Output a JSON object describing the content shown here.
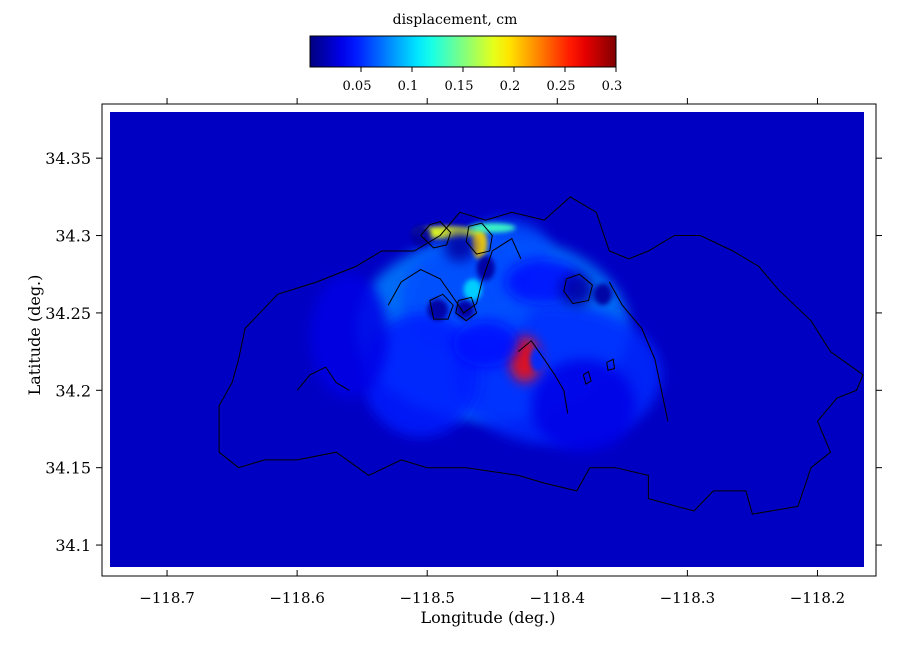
{
  "chart_data": {
    "type": "heatmap",
    "title": "",
    "xlabel": "Longitude (deg.)",
    "ylabel": "Latitude (deg.)",
    "xlim": [
      -118.75,
      -118.155
    ],
    "ylim": [
      34.08,
      34.385
    ],
    "x_ticks": [
      -118.7,
      -118.6,
      -118.5,
      -118.4,
      -118.3,
      -118.2
    ],
    "x_tick_labels": [
      "−118.7",
      "−118.6",
      "−118.5",
      "−118.4",
      "−118.3",
      "−118.2"
    ],
    "y_ticks": [
      34.1,
      34.15,
      34.2,
      34.25,
      34.3,
      34.35
    ],
    "y_tick_labels": [
      "34.1",
      "34.15",
      "34.2",
      "34.25",
      "34.3",
      "34.35"
    ],
    "colorbar": {
      "label": "displacement, cm",
      "range": [
        0,
        0.3
      ],
      "ticks": [
        0.05,
        0.1,
        0.15,
        0.2,
        0.25,
        0.3
      ],
      "tick_labels": [
        "0.05",
        "0.1",
        "0.15",
        "0.2",
        "0.25",
        "0.3"
      ],
      "colormap": "jet"
    },
    "background_value": 0.02,
    "features": [
      {
        "x": -118.45,
        "y": 34.24,
        "sx": 0.105,
        "sy": 0.06,
        "value": 0.075
      },
      {
        "x": -118.4,
        "y": 34.21,
        "sx": 0.08,
        "sy": 0.045,
        "value": 0.05
      },
      {
        "x": -118.47,
        "y": 34.26,
        "sx": 0.05,
        "sy": 0.035,
        "value": 0.06
      },
      {
        "x": -118.44,
        "y": 34.29,
        "sx": 0.035,
        "sy": 0.02,
        "value": 0.06
      },
      {
        "x": -118.505,
        "y": 34.21,
        "sx": 0.045,
        "sy": 0.04,
        "value": 0.045
      },
      {
        "x": -118.56,
        "y": 34.235,
        "sx": 0.03,
        "sy": 0.04,
        "value": 0.03
      },
      {
        "x": -118.38,
        "y": 34.19,
        "sx": 0.04,
        "sy": 0.03,
        "value": 0.03
      },
      {
        "x": -118.45,
        "y": 34.27,
        "sx": 0.01,
        "sy": 0.035,
        "value": 0.06
      },
      {
        "x": -118.465,
        "y": 34.265,
        "sx": 0.007,
        "sy": 0.007,
        "value": 0.1
      },
      {
        "x": -118.425,
        "y": 34.22,
        "sx": 0.012,
        "sy": 0.015,
        "value": 0.26
      },
      {
        "x": -118.415,
        "y": 34.22,
        "sx": 0.006,
        "sy": 0.008,
        "value": 0.05
      },
      {
        "x": -118.46,
        "y": 34.295,
        "sx": 0.006,
        "sy": 0.01,
        "value": 0.2
      },
      {
        "x": -118.485,
        "y": 34.302,
        "sx": 0.025,
        "sy": 0.004,
        "value": 0.18
      },
      {
        "x": -118.45,
        "y": 34.305,
        "sx": 0.018,
        "sy": 0.003,
        "value": 0.13
      },
      {
        "x": -118.41,
        "y": 34.27,
        "sx": 0.03,
        "sy": 0.015,
        "value": 0.04
      },
      {
        "x": -118.455,
        "y": 34.23,
        "sx": 0.025,
        "sy": 0.015,
        "value": 0.04
      },
      {
        "x": -118.505,
        "y": 34.3,
        "sx": 0.008,
        "sy": 0.007,
        "value": -0.06
      },
      {
        "x": -118.475,
        "y": 34.293,
        "sx": 0.012,
        "sy": 0.01,
        "value": -0.07
      },
      {
        "x": -118.455,
        "y": 34.279,
        "sx": 0.007,
        "sy": 0.008,
        "value": -0.07
      },
      {
        "x": -118.492,
        "y": 34.252,
        "sx": 0.008,
        "sy": 0.007,
        "value": -0.07
      },
      {
        "x": -118.471,
        "y": 34.252,
        "sx": 0.007,
        "sy": 0.006,
        "value": -0.07
      },
      {
        "x": -118.385,
        "y": 34.265,
        "sx": 0.013,
        "sy": 0.011,
        "value": -0.06
      },
      {
        "x": -118.365,
        "y": 34.262,
        "sx": 0.007,
        "sy": 0.007,
        "value": -0.05
      }
    ],
    "contours": [
      [
        [
          -118.66,
          34.16
        ],
        [
          -118.66,
          34.19
        ],
        [
          -118.65,
          34.205
        ],
        [
          -118.645,
          34.22
        ],
        [
          -118.64,
          34.24
        ],
        [
          -118.615,
          34.262
        ],
        [
          -118.585,
          34.27
        ],
        [
          -118.555,
          34.28
        ],
        [
          -118.535,
          34.29
        ],
        [
          -118.51,
          34.29
        ],
        [
          -118.49,
          34.3
        ],
        [
          -118.475,
          34.315
        ],
        [
          -118.455,
          34.31
        ],
        [
          -118.435,
          34.315
        ],
        [
          -118.41,
          34.31
        ],
        [
          -118.39,
          34.325
        ],
        [
          -118.37,
          34.315
        ],
        [
          -118.36,
          34.29
        ],
        [
          -118.345,
          34.285
        ],
        [
          -118.33,
          34.29
        ],
        [
          -118.31,
          34.3
        ],
        [
          -118.29,
          34.3
        ],
        [
          -118.265,
          34.29
        ],
        [
          -118.245,
          34.28
        ],
        [
          -118.23,
          34.265
        ],
        [
          -118.205,
          34.245
        ],
        [
          -118.19,
          34.225
        ],
        [
          -118.165,
          34.21
        ],
        [
          -118.17,
          34.2
        ],
        [
          -118.185,
          34.195
        ],
        [
          -118.2,
          34.18
        ],
        [
          -118.19,
          34.16
        ],
        [
          -118.205,
          34.15
        ],
        [
          -118.215,
          34.125
        ],
        [
          -118.25,
          34.12
        ],
        [
          -118.255,
          34.135
        ],
        [
          -118.28,
          34.135
        ],
        [
          -118.295,
          34.122
        ],
        [
          -118.33,
          34.13
        ],
        [
          -118.33,
          34.145
        ],
        [
          -118.355,
          34.15
        ],
        [
          -118.375,
          34.15
        ],
        [
          -118.385,
          34.135
        ],
        [
          -118.41,
          34.14
        ],
        [
          -118.43,
          34.145
        ],
        [
          -118.47,
          34.15
        ],
        [
          -118.5,
          34.15
        ],
        [
          -118.52,
          34.155
        ],
        [
          -118.545,
          34.145
        ],
        [
          -118.57,
          34.16
        ],
        [
          -118.6,
          34.155
        ],
        [
          -118.625,
          34.155
        ],
        [
          -118.645,
          34.15
        ],
        [
          -118.66,
          34.16
        ]
      ],
      [
        [
          -118.53,
          34.255
        ],
        [
          -118.52,
          34.27
        ],
        [
          -118.505,
          34.278
        ],
        [
          -118.49,
          34.272
        ],
        [
          -118.48,
          34.26
        ],
        [
          -118.472,
          34.25
        ],
        [
          -118.462,
          34.256
        ],
        [
          -118.458,
          34.27
        ],
        [
          -118.45,
          34.29
        ],
        [
          -118.435,
          34.298
        ],
        [
          -118.428,
          34.285
        ]
      ],
      [
        [
          -118.43,
          34.225
        ],
        [
          -118.42,
          34.232
        ],
        [
          -118.41,
          34.22
        ],
        [
          -118.402,
          34.21
        ],
        [
          -118.395,
          34.2
        ],
        [
          -118.392,
          34.185
        ]
      ],
      [
        [
          -118.36,
          34.27
        ],
        [
          -118.35,
          34.255
        ],
        [
          -118.335,
          34.24
        ],
        [
          -118.325,
          34.22
        ],
        [
          -118.32,
          34.2
        ],
        [
          -118.315,
          34.18
        ]
      ],
      [
        [
          -118.6,
          34.2
        ],
        [
          -118.59,
          34.21
        ],
        [
          -118.578,
          34.215
        ],
        [
          -118.57,
          34.205
        ],
        [
          -118.56,
          34.2
        ]
      ],
      [
        [
          -118.505,
          34.3
        ],
        [
          -118.498,
          34.307
        ],
        [
          -118.49,
          34.309
        ],
        [
          -118.482,
          34.302
        ],
        [
          -118.485,
          34.294
        ],
        [
          -118.495,
          34.292
        ],
        [
          -118.505,
          34.3
        ]
      ],
      [
        [
          -118.468,
          34.306
        ],
        [
          -118.458,
          34.308
        ],
        [
          -118.45,
          34.3
        ],
        [
          -118.452,
          34.29
        ],
        [
          -118.462,
          34.288
        ],
        [
          -118.47,
          34.296
        ],
        [
          -118.468,
          34.306
        ]
      ],
      [
        [
          -118.498,
          34.258
        ],
        [
          -118.488,
          34.262
        ],
        [
          -118.48,
          34.255
        ],
        [
          -118.484,
          34.246
        ],
        [
          -118.495,
          34.246
        ],
        [
          -118.498,
          34.258
        ]
      ],
      [
        [
          -118.476,
          34.258
        ],
        [
          -118.466,
          34.26
        ],
        [
          -118.462,
          34.25
        ],
        [
          -118.47,
          34.245
        ],
        [
          -118.478,
          34.25
        ],
        [
          -118.476,
          34.258
        ]
      ],
      [
        [
          -118.393,
          34.272
        ],
        [
          -118.383,
          34.275
        ],
        [
          -118.373,
          34.268
        ],
        [
          -118.376,
          34.258
        ],
        [
          -118.388,
          34.256
        ],
        [
          -118.395,
          34.264
        ],
        [
          -118.393,
          34.272
        ]
      ],
      [
        [
          -118.38,
          34.21
        ],
        [
          -118.376,
          34.212
        ],
        [
          -118.374,
          34.206
        ],
        [
          -118.378,
          34.204
        ],
        [
          -118.38,
          34.21
        ]
      ],
      [
        [
          -118.362,
          34.218
        ],
        [
          -118.357,
          34.22
        ],
        [
          -118.356,
          34.214
        ],
        [
          -118.361,
          34.213
        ],
        [
          -118.362,
          34.218
        ]
      ]
    ]
  }
}
